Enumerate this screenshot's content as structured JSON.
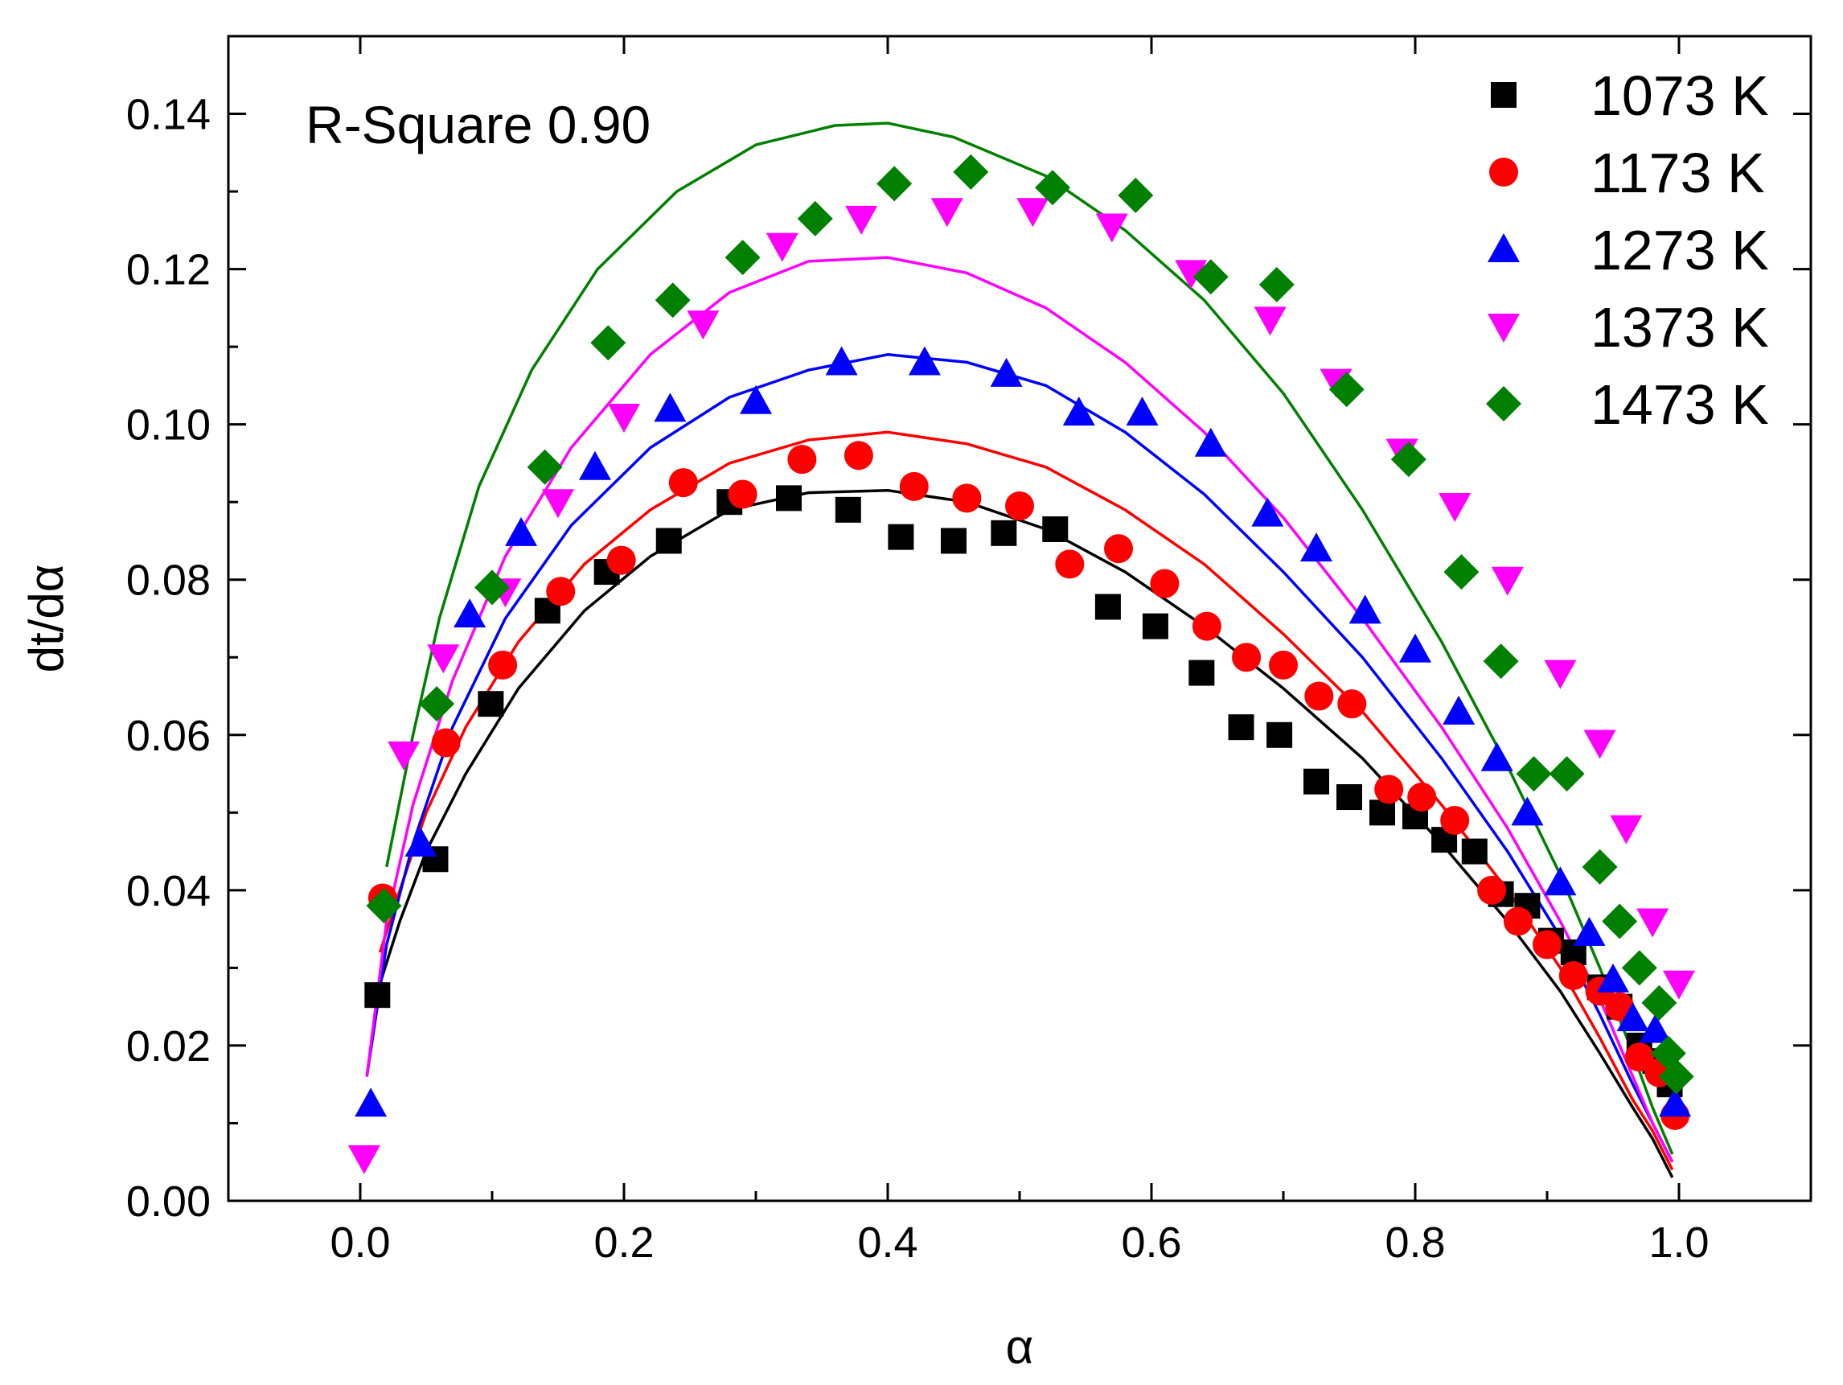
{
  "chart_data": {
    "type": "scatter",
    "title": "",
    "xlabel": "α",
    "ylabel": "dt/dα",
    "xlim": [
      -0.1,
      1.1
    ],
    "ylim": [
      0.0,
      0.15
    ],
    "xticks": [
      0.0,
      0.2,
      0.4,
      0.6,
      0.8,
      1.0
    ],
    "xtick_labels": [
      "0.0",
      "0.2",
      "0.4",
      "0.6",
      "0.8",
      "1.0"
    ],
    "yticks": [
      0.0,
      0.02,
      0.04,
      0.06,
      0.08,
      0.1,
      0.12,
      0.14
    ],
    "ytick_labels": [
      "0.00",
      "0.02",
      "0.04",
      "0.06",
      "0.08",
      "0.10",
      "0.12",
      "0.14"
    ],
    "grid": false,
    "legend_position": "top-right",
    "annotation": "R-Square 0.90",
    "series": [
      {
        "name": "1073 K",
        "color": "#000000",
        "marker": "square",
        "x": [
          0.013,
          0.057,
          0.099,
          0.142,
          0.187,
          0.234,
          0.28,
          0.325,
          0.37,
          0.41,
          0.45,
          0.488,
          0.527,
          0.567,
          0.603,
          0.638,
          0.668,
          0.697,
          0.725,
          0.75,
          0.775,
          0.8,
          0.822,
          0.845,
          0.865,
          0.885,
          0.903,
          0.92,
          0.94,
          0.955,
          0.97,
          0.982,
          0.993
        ],
        "y": [
          0.0265,
          0.044,
          0.064,
          0.076,
          0.081,
          0.085,
          0.09,
          0.0905,
          0.089,
          0.0855,
          0.085,
          0.086,
          0.0865,
          0.0765,
          0.074,
          0.068,
          0.061,
          0.06,
          0.054,
          0.052,
          0.05,
          0.0495,
          0.0465,
          0.045,
          0.0395,
          0.038,
          0.0335,
          0.032,
          0.0275,
          0.025,
          0.02,
          0.018,
          0.015
        ],
        "fit_x": [
          0.015,
          0.03,
          0.05,
          0.08,
          0.12,
          0.17,
          0.22,
          0.28,
          0.34,
          0.4,
          0.46,
          0.52,
          0.58,
          0.64,
          0.7,
          0.76,
          0.82,
          0.87,
          0.91,
          0.94,
          0.965,
          0.98,
          0.995
        ],
        "fit_y": [
          0.028,
          0.036,
          0.045,
          0.055,
          0.066,
          0.076,
          0.083,
          0.089,
          0.0912,
          0.0915,
          0.09,
          0.0865,
          0.081,
          0.074,
          0.066,
          0.057,
          0.046,
          0.036,
          0.027,
          0.019,
          0.012,
          0.008,
          0.003
        ]
      },
      {
        "name": "1173 K",
        "color": "#ff0000",
        "marker": "circle",
        "x": [
          0.017,
          0.065,
          0.108,
          0.152,
          0.198,
          0.245,
          0.29,
          0.335,
          0.378,
          0.42,
          0.46,
          0.5,
          0.538,
          0.575,
          0.61,
          0.642,
          0.672,
          0.7,
          0.727,
          0.752,
          0.78,
          0.805,
          0.83,
          0.858,
          0.878,
          0.9,
          0.92,
          0.94,
          0.955,
          0.97,
          0.985,
          0.997
        ],
        "y": [
          0.039,
          0.059,
          0.069,
          0.0785,
          0.0825,
          0.0925,
          0.091,
          0.0955,
          0.096,
          0.092,
          0.0905,
          0.0895,
          0.082,
          0.084,
          0.0795,
          0.074,
          0.07,
          0.069,
          0.065,
          0.064,
          0.053,
          0.052,
          0.049,
          0.04,
          0.036,
          0.033,
          0.029,
          0.027,
          0.025,
          0.0185,
          0.0165,
          0.011
        ]
      },
      {
        "name": "1273 K",
        "color": "#0000ff",
        "marker": "triangle-up",
        "x": [
          0.008,
          0.046,
          0.083,
          0.122,
          0.178,
          0.235,
          0.3,
          0.365,
          0.428,
          0.49,
          0.545,
          0.593,
          0.645,
          0.688,
          0.725,
          0.762,
          0.8,
          0.833,
          0.862,
          0.885,
          0.91,
          0.932,
          0.95,
          0.965,
          0.982,
          0.997
        ],
        "y": [
          0.0125,
          0.046,
          0.0755,
          0.086,
          0.0945,
          0.102,
          0.103,
          0.108,
          0.108,
          0.1065,
          0.1015,
          0.1015,
          0.0975,
          0.0885,
          0.084,
          0.076,
          0.071,
          0.063,
          0.057,
          0.05,
          0.041,
          0.0345,
          0.0285,
          0.0235,
          0.022,
          0.0125
        ]
      },
      {
        "name": "1373 K",
        "color": "#ff00ff",
        "marker": "triangle-down",
        "x": [
          0.003,
          0.033,
          0.063,
          0.11,
          0.15,
          0.2,
          0.26,
          0.32,
          0.38,
          0.445,
          0.51,
          0.57,
          0.63,
          0.69,
          0.74,
          0.79,
          0.83,
          0.87,
          0.91,
          0.94,
          0.96,
          0.98,
          1.0
        ],
        "y": [
          0.0055,
          0.0575,
          0.07,
          0.0785,
          0.09,
          0.101,
          0.113,
          0.123,
          0.1265,
          0.1275,
          0.1275,
          0.1255,
          0.1195,
          0.1135,
          0.1055,
          0.0965,
          0.0895,
          0.08,
          0.068,
          0.059,
          0.048,
          0.036,
          0.028
        ]
      },
      {
        "name": "1473 K",
        "color": "#008000",
        "marker": "diamond",
        "x": [
          0.018,
          0.058,
          0.1,
          0.14,
          0.188,
          0.237,
          0.29,
          0.345,
          0.405,
          0.463,
          0.525,
          0.588,
          0.645,
          0.695,
          0.748,
          0.795,
          0.835,
          0.865,
          0.89,
          0.915,
          0.94,
          0.955,
          0.97,
          0.985,
          0.992,
          0.998
        ],
        "y": [
          0.038,
          0.064,
          0.079,
          0.0945,
          0.1105,
          0.116,
          0.1215,
          0.1265,
          0.131,
          0.1325,
          0.1305,
          0.1295,
          0.119,
          0.118,
          0.1045,
          0.0955,
          0.081,
          0.0695,
          0.055,
          0.055,
          0.043,
          0.036,
          0.03,
          0.0255,
          0.019,
          0.016
        ]
      }
    ],
    "fits": [
      {
        "name": "1173 K fit",
        "color": "#ff0000",
        "x": [
          0.015,
          0.03,
          0.05,
          0.08,
          0.12,
          0.17,
          0.22,
          0.28,
          0.34,
          0.4,
          0.46,
          0.52,
          0.58,
          0.64,
          0.7,
          0.76,
          0.82,
          0.87,
          0.91,
          0.94,
          0.965,
          0.98,
          0.995
        ],
        "y": [
          0.032,
          0.04,
          0.05,
          0.061,
          0.072,
          0.082,
          0.089,
          0.095,
          0.098,
          0.099,
          0.0975,
          0.0945,
          0.089,
          0.082,
          0.073,
          0.063,
          0.051,
          0.04,
          0.03,
          0.021,
          0.013,
          0.009,
          0.004
        ]
      },
      {
        "name": "1273 K fit",
        "color": "#0000ff",
        "x": [
          0.005,
          0.02,
          0.04,
          0.07,
          0.11,
          0.16,
          0.22,
          0.28,
          0.34,
          0.4,
          0.46,
          0.52,
          0.58,
          0.64,
          0.7,
          0.76,
          0.82,
          0.87,
          0.91,
          0.94,
          0.965,
          0.98,
          0.995
        ],
        "y": [
          0.016,
          0.033,
          0.046,
          0.061,
          0.075,
          0.087,
          0.097,
          0.1035,
          0.107,
          0.109,
          0.108,
          0.105,
          0.099,
          0.091,
          0.081,
          0.07,
          0.057,
          0.045,
          0.034,
          0.024,
          0.015,
          0.01,
          0.005
        ]
      },
      {
        "name": "1373 K fit",
        "color": "#ff00ff",
        "x": [
          0.005,
          0.02,
          0.04,
          0.07,
          0.11,
          0.16,
          0.22,
          0.28,
          0.34,
          0.4,
          0.46,
          0.52,
          0.58,
          0.64,
          0.7,
          0.76,
          0.82,
          0.87,
          0.91,
          0.94,
          0.965,
          0.98,
          0.995
        ],
        "y": [
          0.016,
          0.036,
          0.051,
          0.067,
          0.083,
          0.097,
          0.109,
          0.117,
          0.121,
          0.1215,
          0.1195,
          0.115,
          0.108,
          0.099,
          0.088,
          0.075,
          0.061,
          0.048,
          0.036,
          0.026,
          0.016,
          0.01,
          0.005
        ]
      },
      {
        "name": "1473 K fit",
        "color": "#008000",
        "x": [
          0.02,
          0.04,
          0.06,
          0.09,
          0.13,
          0.18,
          0.24,
          0.3,
          0.36,
          0.4,
          0.45,
          0.52,
          0.58,
          0.64,
          0.7,
          0.76,
          0.82,
          0.87,
          0.91,
          0.94,
          0.965,
          0.98,
          0.995
        ],
        "y": [
          0.043,
          0.06,
          0.075,
          0.092,
          0.107,
          0.12,
          0.13,
          0.136,
          0.1385,
          0.1388,
          0.137,
          0.132,
          0.125,
          0.116,
          0.104,
          0.089,
          0.072,
          0.056,
          0.042,
          0.03,
          0.019,
          0.012,
          0.006
        ]
      }
    ]
  }
}
